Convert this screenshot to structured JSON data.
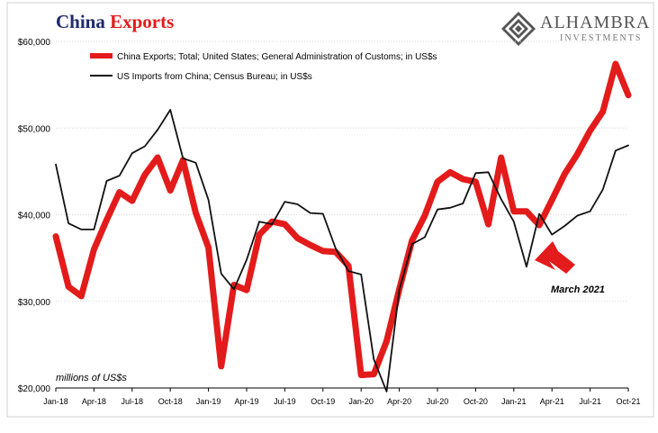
{
  "header": {
    "title_part1": "China",
    "title_part2": "Exports",
    "brand_name": "ALHAMBRA",
    "brand_sub": "INVESTMENTS"
  },
  "colors": {
    "red_series": "#e31b1b",
    "black_series": "#111111",
    "title_navy": "#1f2a6b",
    "grid": "#d9d9d9"
  },
  "chart_data": {
    "type": "line",
    "units_label": "millions of US$s",
    "ylim": [
      20000,
      60000
    ],
    "y_ticks": [
      20000,
      30000,
      40000,
      50000,
      60000
    ],
    "y_tick_labels": [
      "$20,000",
      "$30,000",
      "$40,000",
      "$50,000",
      "$60,000"
    ],
    "grid": true,
    "legend_position": "top-left",
    "x": [
      "Jan-18",
      "Feb-18",
      "Mar-18",
      "Apr-18",
      "May-18",
      "Jun-18",
      "Jul-18",
      "Aug-18",
      "Sep-18",
      "Oct-18",
      "Nov-18",
      "Dec-18",
      "Jan-19",
      "Feb-19",
      "Mar-19",
      "Apr-19",
      "May-19",
      "Jun-19",
      "Jul-19",
      "Aug-19",
      "Sep-19",
      "Oct-19",
      "Nov-19",
      "Dec-19",
      "Jan-20",
      "Feb-20",
      "Mar-20",
      "Apr-20",
      "May-20",
      "Jun-20",
      "Jul-20",
      "Aug-20",
      "Sep-20",
      "Oct-20",
      "Nov-20",
      "Dec-20",
      "Jan-21",
      "Feb-21",
      "Mar-21",
      "Apr-21",
      "May-21",
      "Jun-21",
      "Jul-21",
      "Aug-21",
      "Sep-21",
      "Oct-21"
    ],
    "x_tick_labels": [
      "Jan-18",
      "Apr-18",
      "Jul-18",
      "Oct-18",
      "Jan-19",
      "Apr-19",
      "Jul-19",
      "Oct-19",
      "Jan-20",
      "Apr-20",
      "Jul-20",
      "Oct-20",
      "Jan-21",
      "Apr-21",
      "Jul-21",
      "Oct-21"
    ],
    "series": [
      {
        "name": "China Exports; Total; United States; General Administration of Customs; in US$s",
        "color": "#e31b1b",
        "values": [
          37500,
          31700,
          30600,
          36000,
          39400,
          42600,
          41600,
          44600,
          46600,
          42800,
          46300,
          40200,
          36200,
          22500,
          31900,
          31300,
          37700,
          39200,
          38900,
          37300,
          36500,
          35800,
          35700,
          34100,
          21500,
          21600,
          25400,
          31400,
          37000,
          39900,
          43800,
          44900,
          44100,
          43800,
          38900,
          46600,
          40400,
          40400,
          38800,
          41700,
          44700,
          47000,
          49700,
          51900,
          57400,
          53800
        ]
      },
      {
        "name": "US Imports from China; Census Bureau; in US$s",
        "color": "#111111",
        "values": [
          45800,
          39000,
          38300,
          38300,
          43900,
          44500,
          47100,
          47900,
          49800,
          52100,
          46500,
          46000,
          41700,
          33200,
          31400,
          34800,
          39200,
          38900,
          41500,
          41200,
          40200,
          40100,
          36100,
          33500,
          33100,
          23300,
          19600,
          31300,
          36600,
          37400,
          40600,
          40800,
          41300,
          44800,
          44900,
          41800,
          39200,
          34000,
          40100,
          37700,
          38700,
          39900,
          40400,
          42900,
          47400,
          48000
        ]
      }
    ],
    "annotation": {
      "text": "March 2021",
      "target_x": "Mar-21"
    }
  }
}
